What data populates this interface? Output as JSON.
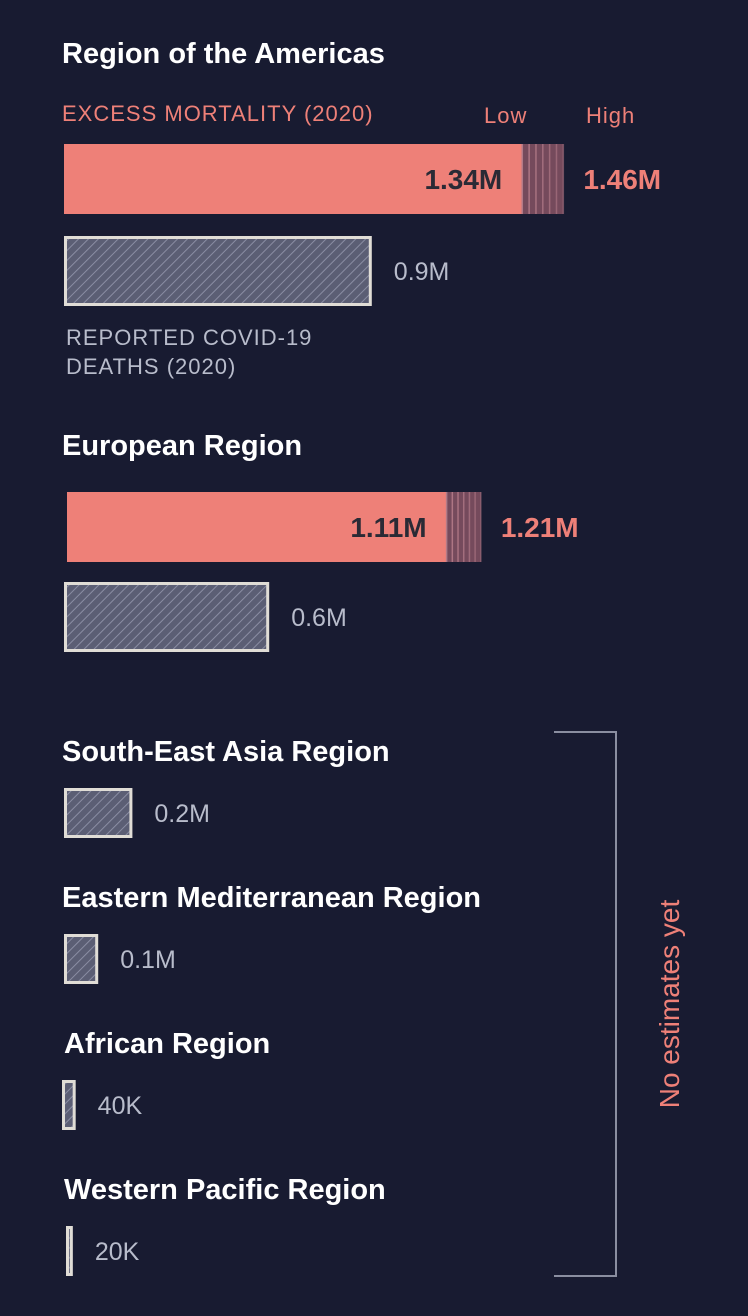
{
  "colors": {
    "background": "#181b31",
    "excess": "#ee8078",
    "reported_fill": "#5b5e74",
    "reported_border": "#e0ddd6",
    "muted_text": "#b8bccb",
    "title_text": "#ffffff"
  },
  "legend": {
    "excess_label": "EXCESS MORTALITY (2020)",
    "low_label": "Low",
    "high_label": "High",
    "reported_label_line1": "REPORTED COVID-19",
    "reported_label_line2": "DEATHS (2020)"
  },
  "side_note": "No estimates yet",
  "chart_data": {
    "type": "bar",
    "unit": "deaths",
    "categories": [
      "Region of the Americas",
      "European Region",
      "South-East Asia Region",
      "Eastern Mediterranean Region",
      "African Region",
      "Western Pacific Region"
    ],
    "series": [
      {
        "name": "EXCESS MORTALITY (2020)",
        "low": [
          1340000,
          1110000,
          null,
          null,
          null,
          null
        ],
        "high": [
          1460000,
          1210000,
          null,
          null,
          null,
          null
        ],
        "low_labels": [
          "1.34M",
          "1.11M",
          null,
          null,
          null,
          null
        ],
        "high_labels": [
          "1.46M",
          "1.21M",
          null,
          null,
          null,
          null
        ]
      },
      {
        "name": "REPORTED COVID-19 DEATHS (2020)",
        "values": [
          900000,
          600000,
          200000,
          100000,
          40000,
          20000
        ],
        "labels": [
          "0.9M",
          "0.6M",
          "0.2M",
          "0.1M",
          "40K",
          "20K"
        ]
      }
    ]
  }
}
